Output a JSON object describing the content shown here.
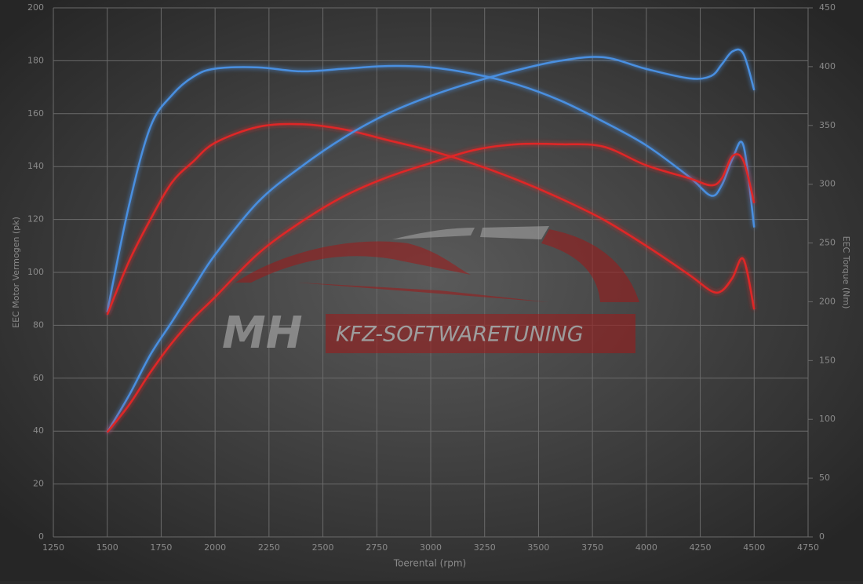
{
  "chart_data": {
    "type": "line",
    "watermark": {
      "brand": "MH",
      "tagline": "KFZ-SOFTWARETUNING"
    },
    "x_label": "Toerental (rpm)",
    "y_label": "EEC Motor Vermogen (pk)",
    "y2_label": "EEC Torque (Nm)",
    "x": [
      1500,
      1600,
      1700,
      1800,
      1900,
      2000,
      2200,
      2400,
      2600,
      2800,
      3000,
      3200,
      3400,
      3600,
      3800,
      4000,
      4200,
      4300,
      4350,
      4400,
      4450,
      4500
    ],
    "xlim": [
      1250,
      4750
    ],
    "xticks": [
      1250,
      1500,
      1750,
      2000,
      2250,
      2500,
      2750,
      3000,
      3250,
      3500,
      3750,
      4000,
      4250,
      4500,
      4750
    ],
    "ylim": [
      0,
      200
    ],
    "yticks": [
      0,
      20,
      40,
      60,
      80,
      100,
      120,
      140,
      160,
      180,
      200
    ],
    "y2lim": [
      0,
      450
    ],
    "y2ticks": [
      0,
      50,
      100,
      150,
      200,
      250,
      300,
      350,
      400,
      450
    ],
    "grid": true,
    "series": [
      {
        "color": "#4a8fe0",
        "axis": "y",
        "values": [
          85,
          125,
          155,
          167,
          174,
          177,
          177.5,
          176,
          177,
          178,
          177.5,
          175,
          171,
          165,
          157,
          148,
          136,
          129,
          133,
          143,
          148,
          117
        ]
      },
      {
        "color": "#e02828",
        "axis": "y",
        "values": [
          84,
          104,
          120,
          134,
          142,
          149,
          155,
          156,
          154,
          150,
          146,
          141,
          135,
          128,
          120,
          110,
          99,
          93,
          93,
          98,
          105,
          86
        ]
      },
      {
        "color": "#4a8fe0",
        "axis": "y2",
        "values": [
          89,
          120,
          155,
          183,
          212,
          240,
          285,
          315,
          340,
          360,
          375,
          387,
          397,
          405,
          408,
          398,
          390,
          392,
          402,
          413,
          411,
          380
        ]
      },
      {
        "color": "#e02828",
        "axis": "y2",
        "values": [
          89,
          112,
          140,
          165,
          186,
          204,
          241,
          268,
          290,
          306,
          318,
          329,
          334,
          334,
          332,
          316,
          305,
          299,
          305,
          324,
          320,
          284
        ]
      }
    ]
  }
}
